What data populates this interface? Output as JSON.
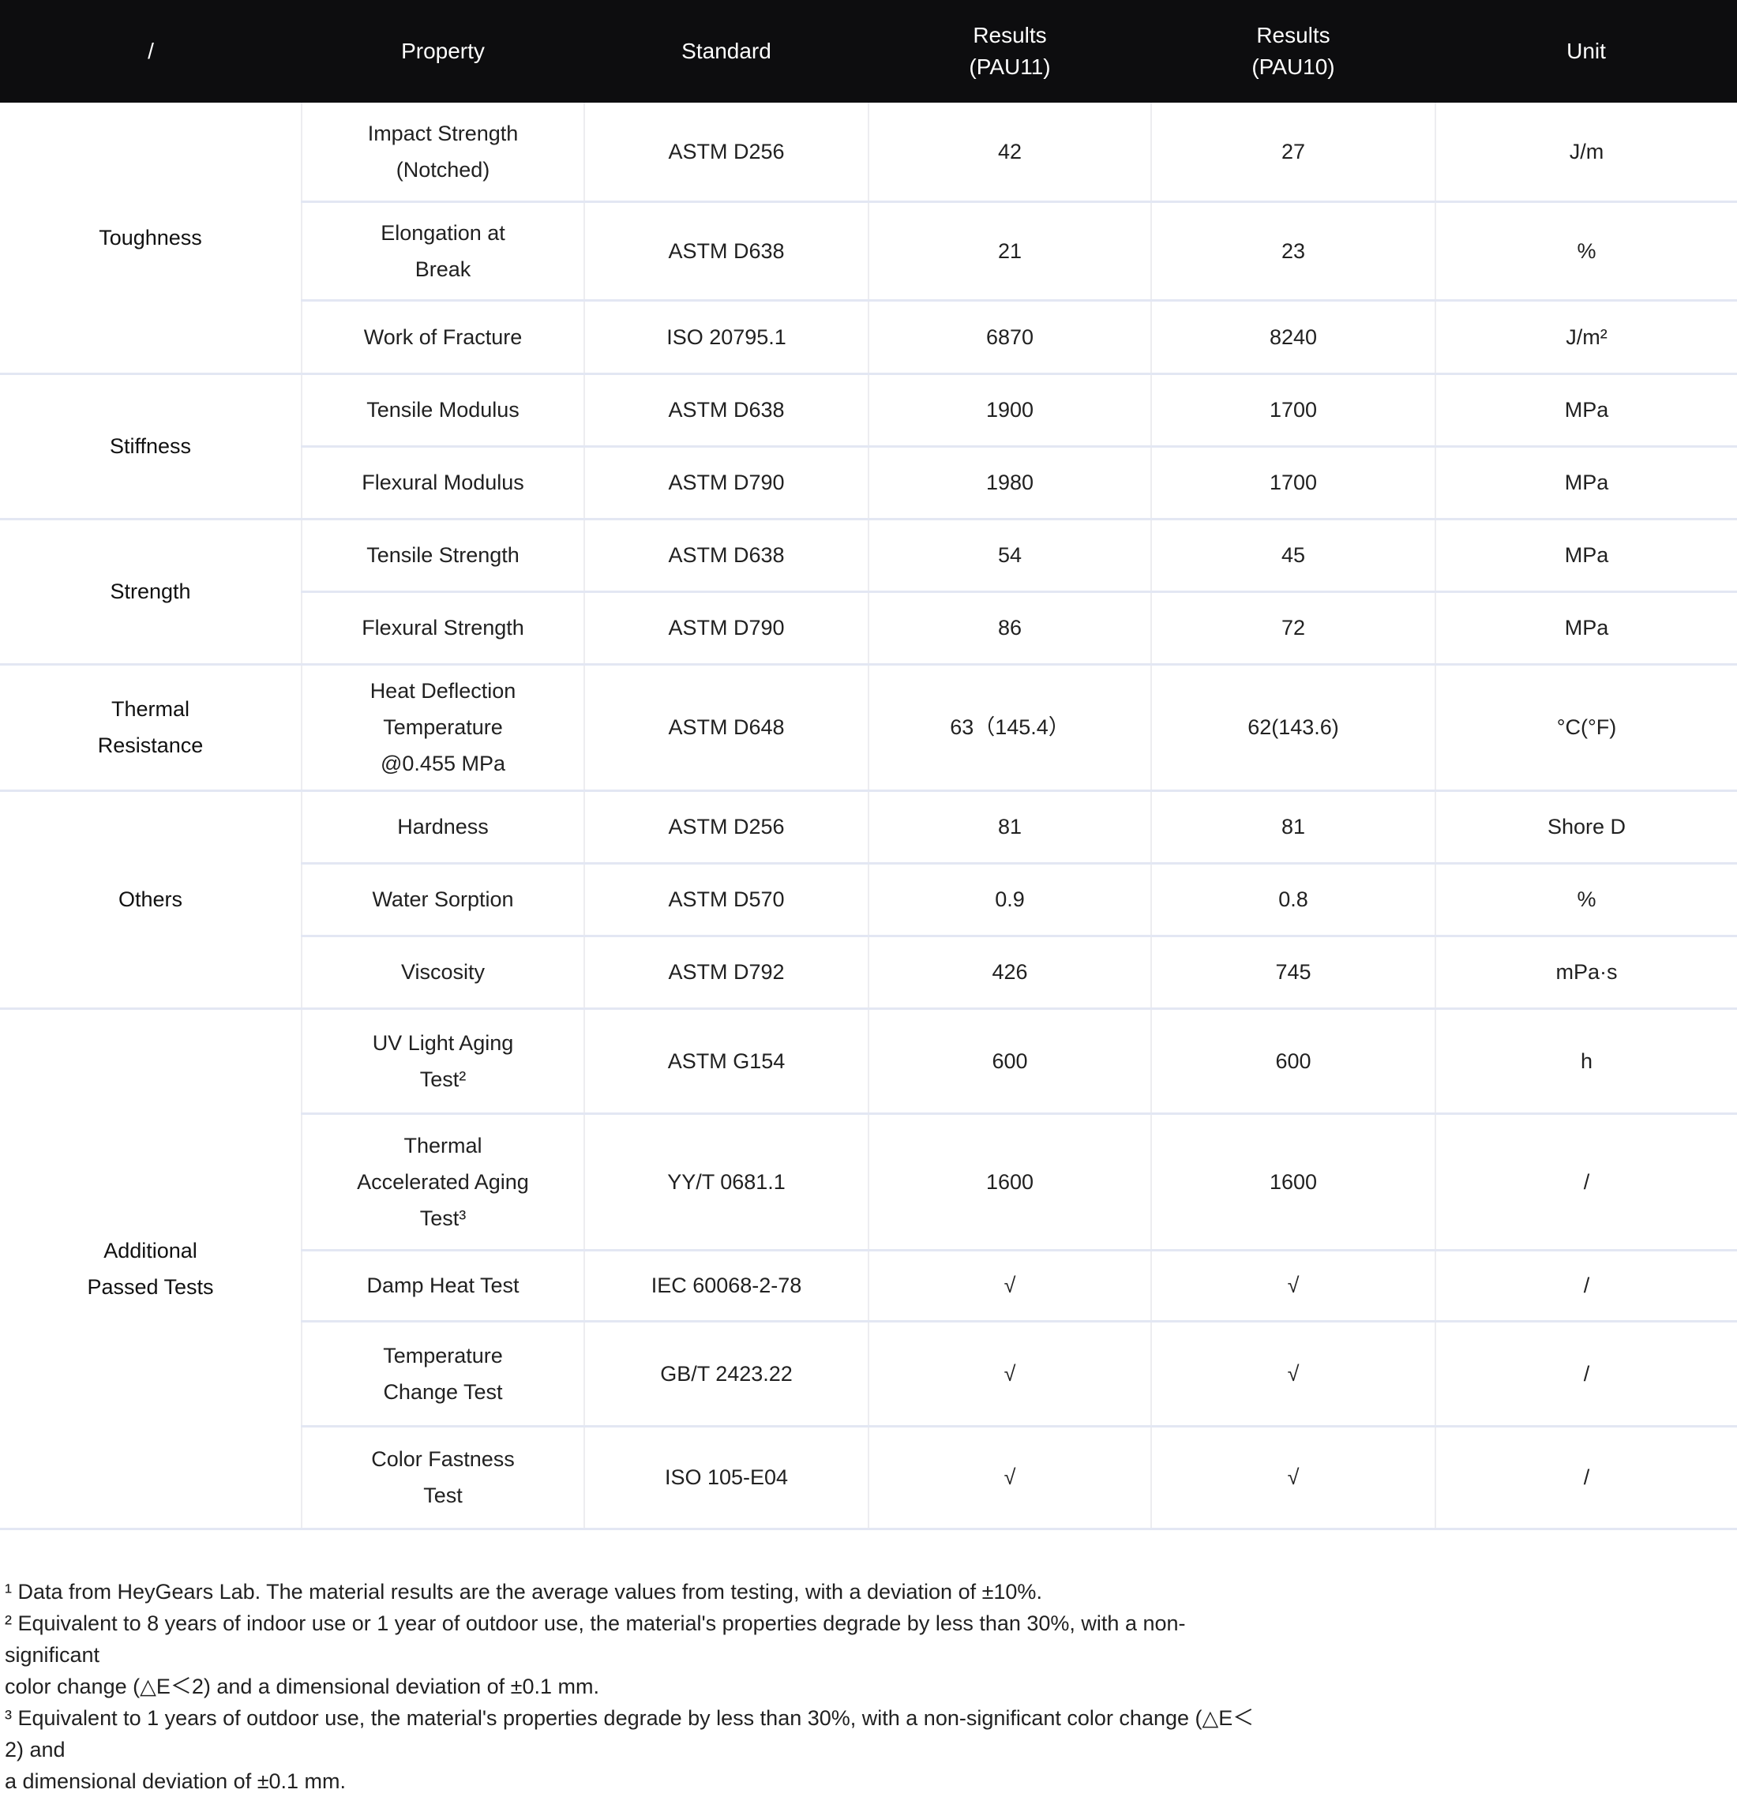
{
  "colors": {
    "header_bg": "#0d0d0f",
    "header_text": "#ffffff",
    "body_text": "#212121",
    "category_text": "#111111",
    "row_line": "#e3e7f3",
    "col_line": "#ededf0",
    "page_bg": "#ffffff"
  },
  "header": {
    "columns": [
      "/",
      "Property",
      "Standard",
      "Results\n(PAU11)",
      "Results\n(PAU10)",
      "Unit"
    ]
  },
  "table": {
    "sections": [
      {
        "category": "Toughness",
        "rows": [
          {
            "property": "Impact Strength\n(Notched)",
            "standard": "ASTM D256",
            "pau11": "42",
            "pau10": "27",
            "unit": "J/m"
          },
          {
            "property": "Elongation at\nBreak",
            "standard": "ASTM D638",
            "pau11": "21",
            "pau10": "23",
            "unit": "%"
          },
          {
            "property": "Work of Fracture",
            "standard": "ISO 20795.1",
            "pau11": "6870",
            "pau10": "8240",
            "unit": "J/m²"
          }
        ]
      },
      {
        "category": "Stiffness",
        "rows": [
          {
            "property": "Tensile Modulus",
            "standard": "ASTM D638",
            "pau11": "1900",
            "pau10": "1700",
            "unit": "MPa"
          },
          {
            "property": "Flexural Modulus",
            "standard": "ASTM D790",
            "pau11": "1980",
            "pau10": "1700",
            "unit": "MPa"
          }
        ]
      },
      {
        "category": "Strength",
        "rows": [
          {
            "property": "Tensile Strength",
            "standard": "ASTM D638",
            "pau11": "54",
            "pau10": "45",
            "unit": "MPa"
          },
          {
            "property": "Flexural Strength",
            "standard": "ASTM D790",
            "pau11": "86",
            "pau10": "72",
            "unit": "MPa"
          }
        ]
      },
      {
        "category": "Thermal\nResistance",
        "rows": [
          {
            "property": "Heat Deflection\nTemperature\n@0.455 MPa",
            "standard": "ASTM D648",
            "pau11": "63（145.4）",
            "pau10": "62(143.6)",
            "unit": "°C(°F)"
          }
        ]
      },
      {
        "category": "Others",
        "rows": [
          {
            "property": "Hardness",
            "standard": "ASTM D256",
            "pau11": "81",
            "pau10": "81",
            "unit": "Shore D"
          },
          {
            "property": "Water Sorption",
            "standard": "ASTM D570",
            "pau11": "0.9",
            "pau10": "0.8",
            "unit": "%"
          },
          {
            "property": "Viscosity",
            "standard": "ASTM D792",
            "pau11": "426",
            "pau10": "745",
            "unit": "mPa·s"
          }
        ]
      },
      {
        "category": "Additional\nPassed Tests",
        "rows": [
          {
            "property": "UV Light Aging\nTest²",
            "standard": "ASTM G154",
            "pau11": "600",
            "pau10": "600",
            "unit": "h"
          },
          {
            "property": "Thermal\nAccelerated Aging\nTest³",
            "standard": "YY/T 0681.1",
            "pau11": "1600",
            "pau10": "1600",
            "unit": "/"
          },
          {
            "property": "Damp Heat Test",
            "standard": "IEC 60068-2-78",
            "pau11": "√",
            "pau10": "√",
            "unit": "/"
          },
          {
            "property": "Temperature\nChange Test",
            "standard": "GB/T 2423.22",
            "pau11": "√",
            "pau10": "√",
            "unit": "/"
          },
          {
            "property": "Color Fastness\nTest",
            "standard": "ISO 105-E04",
            "pau11": "√",
            "pau10": "√",
            "unit": "/"
          }
        ]
      }
    ]
  },
  "footnotes": [
    "¹ Data from HeyGears Lab. The material results are the average values from testing, with a deviation of ±10%.",
    "² Equivalent to 8 years of indoor use or 1 year of outdoor use, the material's properties degrade by less than 30%, with a non-significant\ncolor change (△E＜2) and a dimensional deviation of ±0.1 mm.",
    "³ Equivalent to 1 years of outdoor use, the material's properties degrade by less than 30%, with a non-significant color change (△E＜2) and\na dimensional deviation of ±0.1 mm."
  ]
}
